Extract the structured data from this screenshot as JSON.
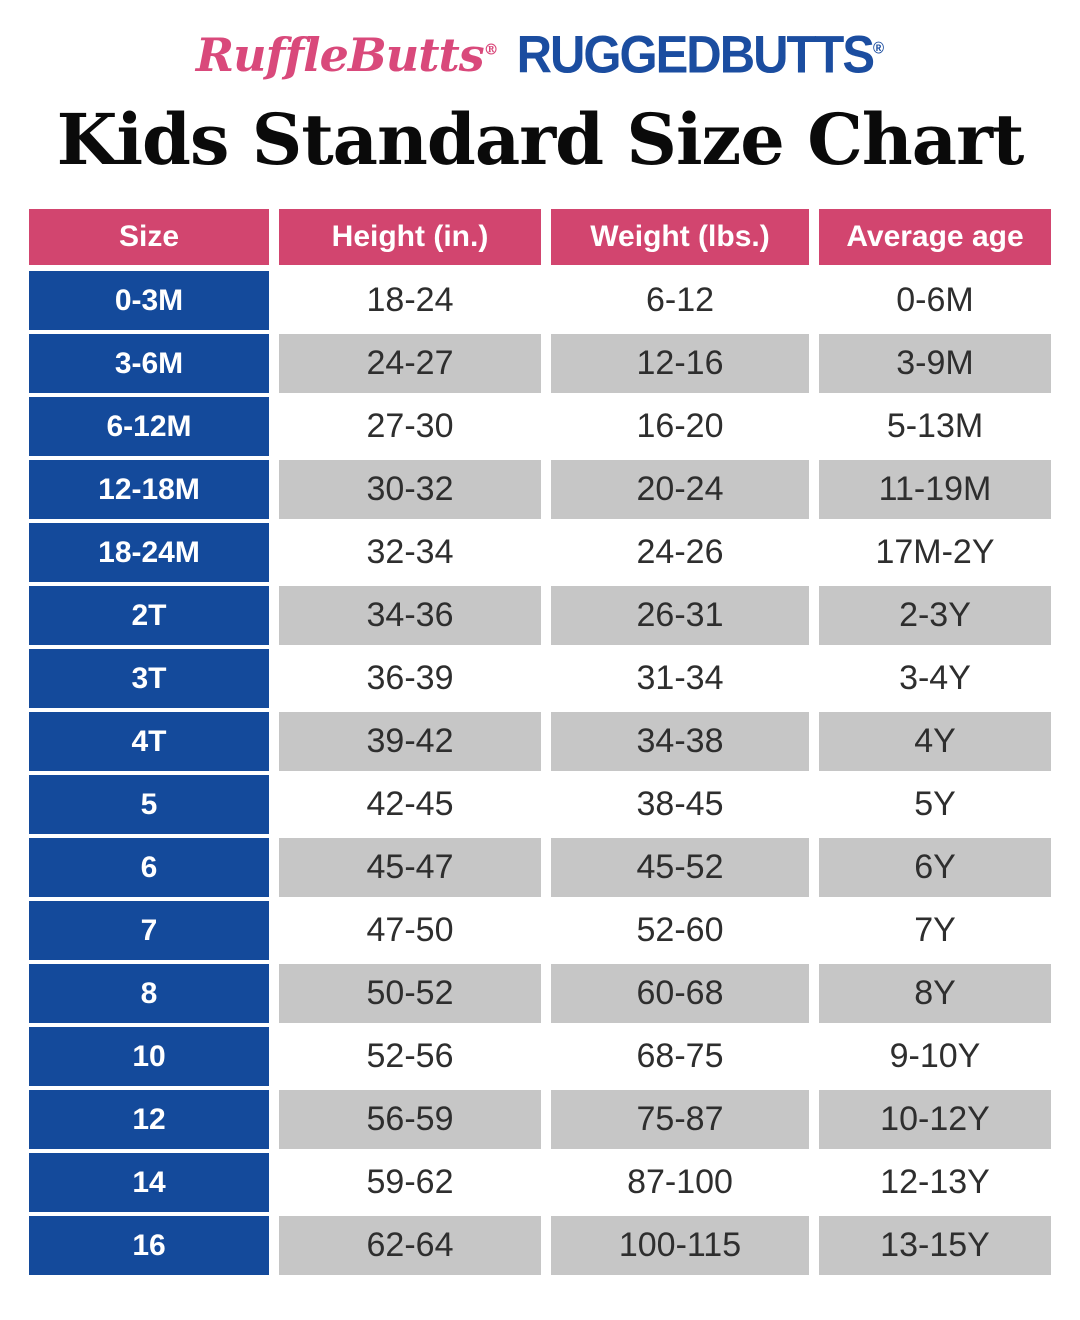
{
  "brand": {
    "rufflebutts": "RuffleButts",
    "ruggedbutts": "RUGGEDBUTTS",
    "registered_mark": "®"
  },
  "title": "Kids Standard Size Chart",
  "colors": {
    "logo_pink": "#D9497B",
    "logo_blue": "#1B4DA0",
    "header_pink": "#D2456F",
    "size_column_blue": "#144A9B",
    "row_gray": "#C6C6C6",
    "data_text": "#2E2E2E"
  },
  "chart_data": {
    "type": "table",
    "title": "Kids Standard Size Chart",
    "columns": [
      "Size",
      "Height (in.)",
      "Weight (lbs.)",
      "Average age"
    ],
    "rows": [
      [
        "0-3M",
        "18-24",
        "6-12",
        "0-6M"
      ],
      [
        "3-6M",
        "24-27",
        "12-16",
        "3-9M"
      ],
      [
        "6-12M",
        "27-30",
        "16-20",
        "5-13M"
      ],
      [
        "12-18M",
        "30-32",
        "20-24",
        "11-19M"
      ],
      [
        "18-24M",
        "32-34",
        "24-26",
        "17M-2Y"
      ],
      [
        "2T",
        "34-36",
        "26-31",
        "2-3Y"
      ],
      [
        "3T",
        "36-39",
        "31-34",
        "3-4Y"
      ],
      [
        "4T",
        "39-42",
        "34-38",
        "4Y"
      ],
      [
        "5",
        "42-45",
        "38-45",
        "5Y"
      ],
      [
        "6",
        "45-47",
        "45-52",
        "6Y"
      ],
      [
        "7",
        "47-50",
        "52-60",
        "7Y"
      ],
      [
        "8",
        "50-52",
        "60-68",
        "8Y"
      ],
      [
        "10",
        "52-56",
        "68-75",
        "9-10Y"
      ],
      [
        "12",
        "56-59",
        "75-87",
        "10-12Y"
      ],
      [
        "14",
        "59-62",
        "87-100",
        "12-13Y"
      ],
      [
        "16",
        "62-64",
        "100-115",
        "13-15Y"
      ]
    ],
    "layout": {
      "header_background": "#D2456F",
      "first_column_background": "#144A9B",
      "alternating_row_backgrounds": [
        "#FFFFFF",
        "#C6C6C6"
      ],
      "grid": "white gaps between cells, no borders",
      "legend": "none"
    }
  }
}
